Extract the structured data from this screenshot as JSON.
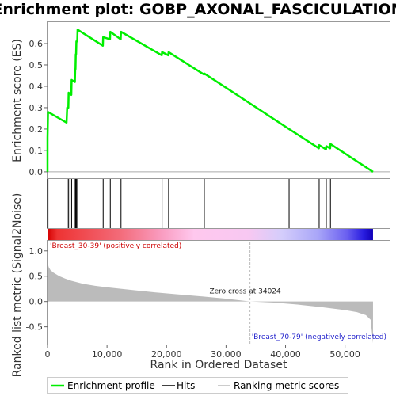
{
  "chart_data": {
    "type": "line",
    "title": "Enrichment plot: GOBP_AXONAL_FASCICULATION",
    "es_panel": {
      "ylabel": "Enrichment score (ES)",
      "ylim": [
        -0.03,
        0.7
      ],
      "yticks": [
        "0.0",
        "0.1",
        "0.2",
        "0.3",
        "0.4",
        "0.5",
        "0.6"
      ],
      "ytick_values": [
        0.0,
        0.1,
        0.2,
        0.3,
        0.4,
        0.5,
        0.6
      ],
      "line_color": "#00ee00",
      "profile": [
        [
          0,
          0.0
        ],
        [
          0,
          0.16
        ],
        [
          80,
          0.28
        ],
        [
          3200,
          0.23
        ],
        [
          3300,
          0.3
        ],
        [
          3500,
          0.3
        ],
        [
          3550,
          0.37
        ],
        [
          4000,
          0.36
        ],
        [
          4050,
          0.43
        ],
        [
          4600,
          0.42
        ],
        [
          4650,
          0.48
        ],
        [
          4700,
          0.48
        ],
        [
          4750,
          0.55
        ],
        [
          4800,
          0.55
        ],
        [
          4850,
          0.61
        ],
        [
          5000,
          0.61
        ],
        [
          5050,
          0.665
        ],
        [
          9300,
          0.59
        ],
        [
          9350,
          0.63
        ],
        [
          10500,
          0.62
        ],
        [
          10550,
          0.655
        ],
        [
          12300,
          0.62
        ],
        [
          12350,
          0.655
        ],
        [
          19200,
          0.545
        ],
        [
          19250,
          0.56
        ],
        [
          20300,
          0.545
        ],
        [
          20350,
          0.56
        ],
        [
          26300,
          0.455
        ],
        [
          26350,
          0.46
        ],
        [
          40600,
          0.2
        ],
        [
          45600,
          0.11
        ],
        [
          45650,
          0.125
        ],
        [
          46800,
          0.105
        ],
        [
          46850,
          0.12
        ],
        [
          47500,
          0.11
        ],
        [
          47550,
          0.13
        ],
        [
          54700,
          0.0
        ]
      ]
    },
    "hits": [
      0,
      80,
      3300,
      3550,
      4050,
      4650,
      4750,
      4850,
      5050,
      9350,
      10550,
      12350,
      19250,
      20350,
      26350,
      40600,
      45650,
      46850,
      47550
    ],
    "gradient_bar": {
      "positive_label": "'Breast_30-39' (positively correlated)",
      "negative_label": "'Breast_70-79' (negatively correlated)",
      "positive_color": "#cc0000",
      "negative_color": "#0000cc"
    },
    "metric_panel": {
      "ylabel": "Ranked list metric (Signal2Noise)",
      "ylim": [
        -0.85,
        1.2
      ],
      "yticks": [
        "-0.5",
        "0.0",
        "0.5",
        "1.0"
      ],
      "ytick_values": [
        -0.5,
        0.0,
        0.5,
        1.0
      ],
      "fill_color": "#bbbbbb",
      "zero_cross_label": "Zero cross at 34024",
      "zero_cross": 34024,
      "profile": [
        [
          0,
          0.78
        ],
        [
          200,
          0.68
        ],
        [
          500,
          0.62
        ],
        [
          1000,
          0.57
        ],
        [
          2000,
          0.5
        ],
        [
          3000,
          0.45
        ],
        [
          4000,
          0.41
        ],
        [
          6000,
          0.35
        ],
        [
          8000,
          0.31
        ],
        [
          10000,
          0.28
        ],
        [
          14000,
          0.23
        ],
        [
          18000,
          0.18
        ],
        [
          22000,
          0.14
        ],
        [
          26000,
          0.1
        ],
        [
          30000,
          0.055
        ],
        [
          34024,
          0.0
        ],
        [
          38000,
          -0.02
        ],
        [
          42000,
          -0.06
        ],
        [
          46000,
          -0.11
        ],
        [
          50000,
          -0.17
        ],
        [
          52000,
          -0.21
        ],
        [
          53500,
          -0.27
        ],
        [
          54300,
          -0.36
        ],
        [
          54700,
          -0.82
        ]
      ]
    },
    "xaxis": {
      "label": "Rank in Ordered Dataset",
      "xlim": [
        0,
        57500
      ],
      "xticks": [
        "0",
        "10,000",
        "20,000",
        "30,000",
        "40,000",
        "50,000"
      ],
      "xtick_values": [
        0,
        10000,
        20000,
        30000,
        40000,
        50000
      ],
      "n": 54700
    },
    "legend": {
      "placement": "bottom",
      "items": [
        {
          "label": "Enrichment profile",
          "color": "#00ee00"
        },
        {
          "label": "Hits",
          "color": "#000000"
        },
        {
          "label": "Ranking metric scores",
          "color": "#bbbbbb"
        }
      ]
    }
  }
}
